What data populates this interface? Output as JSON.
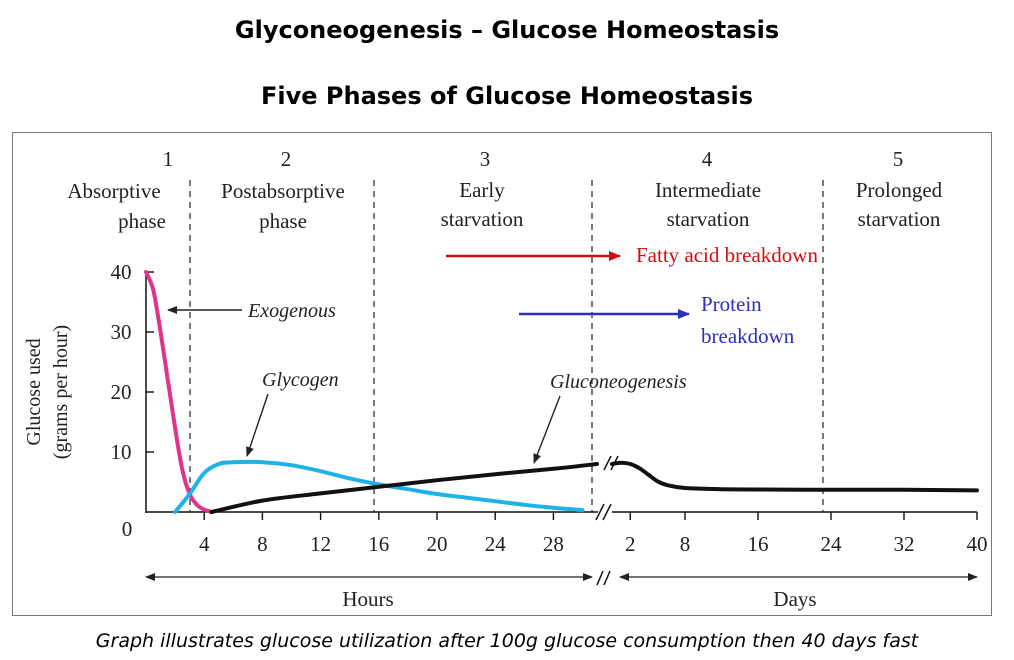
{
  "title": "Glyconeogenesis – Glucose Homeostasis",
  "subtitle": "Five Phases of Glucose Homeostasis",
  "caption": "Graph illustrates glucose utilization after 100g glucose consumption then 40 days fast",
  "colors": {
    "exogenous": "#e0348a",
    "glycogen": "#1fb2e6",
    "gluconeogenesis": "#111111",
    "fatty_acid": "#d01010",
    "protein": "#2e2eb8"
  },
  "chart_data": {
    "type": "line",
    "ylabel_lines": [
      "Glucose used",
      "(grams per hour)"
    ],
    "ylim": [
      0,
      40
    ],
    "yticks": [
      "0",
      "10",
      "20",
      "30",
      "40"
    ],
    "hours_ticks": [
      "4",
      "8",
      "12",
      "16",
      "20",
      "24",
      "28"
    ],
    "days_ticks": [
      "2",
      "8",
      "16",
      "24",
      "32",
      "40"
    ],
    "hours_label": "Hours",
    "days_label": "Days",
    "phases": [
      {
        "number": "1",
        "label_lines": [
          "Absorptive",
          "phase"
        ]
      },
      {
        "number": "2",
        "label_lines": [
          "Postabsorptive",
          "phase"
        ]
      },
      {
        "number": "3",
        "label_lines": [
          "Early",
          "starvation"
        ]
      },
      {
        "number": "4",
        "label_lines": [
          "Intermediate",
          "starvation"
        ]
      },
      {
        "number": "5",
        "label_lines": [
          "Prolonged",
          "starvation"
        ]
      }
    ],
    "series": [
      {
        "name": "Exogenous",
        "key": "exogenous",
        "segment": "hours",
        "x": [
          0,
          0.5,
          1,
          1.5,
          2,
          2.5,
          3,
          3.5,
          4,
          4.5
        ],
        "y": [
          40,
          37,
          30,
          22,
          14,
          7,
          3,
          1.2,
          0.4,
          0
        ]
      },
      {
        "name": "Glycogen",
        "key": "glycogen",
        "segment": "hours",
        "x": [
          2,
          3,
          4,
          5,
          6,
          8,
          10,
          12,
          14,
          16,
          18,
          20,
          22,
          24,
          26,
          28,
          30
        ],
        "y": [
          0,
          3,
          6.5,
          8,
          8.3,
          8.3,
          7.8,
          6.8,
          5.6,
          4.6,
          3.8,
          3,
          2.4,
          1.8,
          1.2,
          0.7,
          0.3
        ]
      },
      {
        "name": "Gluconeogenesis",
        "key": "gluconeogenesis",
        "segment": "hours",
        "x": [
          4.5,
          8,
          12,
          16,
          20,
          24,
          28,
          31
        ],
        "y": [
          0,
          1.9,
          3.1,
          4.2,
          5.3,
          6.3,
          7.2,
          8
        ]
      },
      {
        "name": "Gluconeogenesis",
        "key": "gluconeogenesis",
        "segment": "days",
        "x": [
          0,
          1,
          2,
          3,
          4,
          5,
          6,
          8,
          12,
          16,
          24,
          32,
          40
        ],
        "y": [
          8,
          8.2,
          8,
          7.3,
          6.2,
          5.1,
          4.5,
          4,
          3.8,
          3.75,
          3.7,
          3.7,
          3.6
        ]
      }
    ],
    "annotations": {
      "exogenous": "Exogenous",
      "glycogen": "Glycogen",
      "gluconeogenesis": "Gluconeogenesis",
      "fatty_acid": "Fatty acid breakdown",
      "protein_lines": [
        "Protein",
        "breakdown"
      ]
    }
  }
}
